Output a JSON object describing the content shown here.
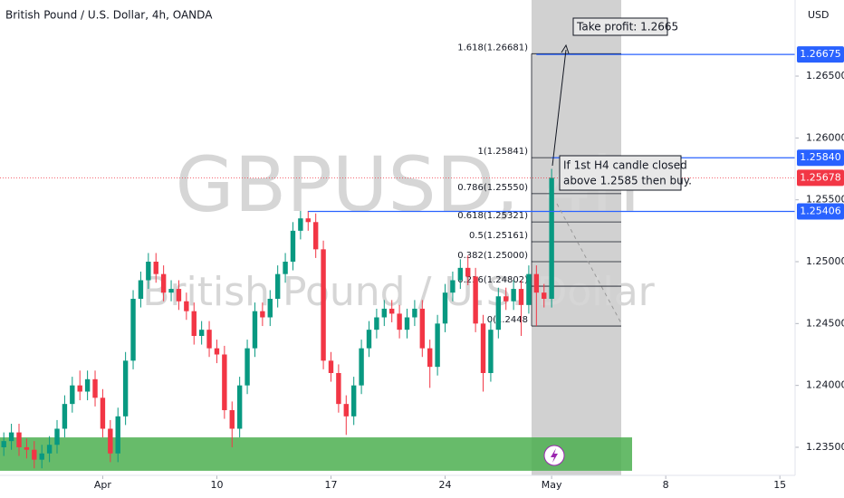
{
  "chart_data": {
    "type": "candlestick",
    "title": "British Pound / U.S. Dollar, 4h, OANDA",
    "watermark": "GBPUSD, 4h",
    "watermark_subtitle": "British Pound / U.S. Dollar",
    "currency": "USD",
    "up_color": "#089981",
    "down_color": "#f23645",
    "xlim": [
      -0.5,
      104
    ],
    "xticks": [
      {
        "value": 13,
        "label": "Apr"
      },
      {
        "value": 28,
        "label": "10"
      },
      {
        "value": 43,
        "label": "17"
      },
      {
        "value": 58,
        "label": "24"
      },
      {
        "value": 72,
        "label": "May"
      },
      {
        "value": 87,
        "label": "8"
      },
      {
        "value": 102,
        "label": "15"
      }
    ],
    "ylim": [
      1.23273,
      1.27115
    ],
    "yticks": [
      {
        "value": 1.235,
        "label": "1.23500"
      },
      {
        "value": 1.24,
        "label": "1.24000"
      },
      {
        "value": 1.245,
        "label": "1.24500"
      },
      {
        "value": 1.25,
        "label": "1.25000"
      },
      {
        "value": 1.255,
        "label": "1.25500"
      },
      {
        "value": 1.26,
        "label": "1.26000"
      },
      {
        "value": 1.265,
        "label": "1.26500"
      }
    ],
    "open": [
      1.235,
      1.2355,
      1.2362,
      1.235,
      1.2348,
      1.234,
      1.2345,
      1.2352,
      1.2365,
      1.2385,
      1.24,
      1.2395,
      1.2405,
      1.239,
      1.2365,
      1.2345,
      1.2375,
      1.242,
      1.247,
      1.2485,
      1.25,
      1.249,
      1.2475,
      1.2478,
      1.2468,
      1.246,
      1.244,
      1.2445,
      1.243,
      1.2425,
      1.238,
      1.2365,
      1.24,
      1.243,
      1.246,
      1.2455,
      1.247,
      1.249,
      1.25,
      1.2525,
      1.2535,
      1.2532,
      1.251,
      1.242,
      1.241,
      1.2385,
      1.2375,
      1.24,
      1.243,
      1.2445,
      1.2455,
      1.2462,
      1.2458,
      1.2445,
      1.2455,
      1.2462,
      1.243,
      1.2415,
      1.245,
      1.2475,
      1.2485,
      1.2495,
      1.2488,
      1.245,
      1.241,
      1.2445,
      1.2472,
      1.2468,
      1.2478,
      1.2465,
      1.249,
      1.2475,
      1.247
    ],
    "high": [
      1.2362,
      1.2369,
      1.2369,
      1.2357,
      1.2355,
      1.2352,
      1.2359,
      1.2372,
      1.2392,
      1.2407,
      1.2412,
      1.2412,
      1.2412,
      1.2397,
      1.2372,
      1.2382,
      1.2427,
      1.2477,
      1.2492,
      1.2507,
      1.2507,
      1.2497,
      1.2485,
      1.2485,
      1.2475,
      1.2467,
      1.2452,
      1.2452,
      1.2437,
      1.2432,
      1.2387,
      1.2407,
      1.2437,
      1.2467,
      1.2467,
      1.2477,
      1.2497,
      1.2507,
      1.2532,
      1.2541,
      1.2541,
      1.2539,
      1.2517,
      1.2427,
      1.2417,
      1.2392,
      1.2407,
      1.2437,
      1.2452,
      1.2462,
      1.2469,
      1.2469,
      1.2465,
      1.2462,
      1.2469,
      1.2469,
      1.2437,
      1.2457,
      1.2482,
      1.2492,
      1.2502,
      1.2505,
      1.2495,
      1.2457,
      1.2452,
      1.2479,
      1.2479,
      1.2485,
      1.2485,
      1.2497,
      1.2497,
      1.2482,
      1.2575
    ],
    "low": [
      1.2343,
      1.2348,
      1.2343,
      1.2341,
      1.2333,
      1.2333,
      1.2338,
      1.2345,
      1.2358,
      1.2378,
      1.2388,
      1.2388,
      1.2383,
      1.2358,
      1.2338,
      1.2338,
      1.2368,
      1.2413,
      1.2463,
      1.2478,
      1.2483,
      1.2468,
      1.2468,
      1.2461,
      1.2453,
      1.2433,
      1.2433,
      1.2423,
      1.2418,
      1.2373,
      1.235,
      1.2358,
      1.2393,
      1.2423,
      1.2448,
      1.2448,
      1.2463,
      1.2483,
      1.2493,
      1.2518,
      1.2525,
      1.2503,
      1.2413,
      1.2403,
      1.2378,
      1.236,
      1.2368,
      1.2393,
      1.2423,
      1.2438,
      1.2448,
      1.2451,
      1.2438,
      1.2438,
      1.2448,
      1.2423,
      1.2398,
      1.2408,
      1.2443,
      1.2468,
      1.2478,
      1.2481,
      1.2443,
      1.2395,
      1.2403,
      1.2438,
      1.2461,
      1.2461,
      1.244,
      1.2458,
      1.2448,
      1.2463,
      1.2463
    ],
    "close": [
      1.2355,
      1.2362,
      1.235,
      1.2348,
      1.234,
      1.2345,
      1.2352,
      1.2365,
      1.2385,
      1.24,
      1.2395,
      1.2405,
      1.239,
      1.2365,
      1.2345,
      1.2375,
      1.242,
      1.247,
      1.2485,
      1.25,
      1.249,
      1.2475,
      1.2478,
      1.2468,
      1.246,
      1.244,
      1.2445,
      1.243,
      1.2425,
      1.238,
      1.2365,
      1.24,
      1.243,
      1.246,
      1.2455,
      1.247,
      1.249,
      1.25,
      1.2525,
      1.2535,
      1.2532,
      1.251,
      1.242,
      1.241,
      1.2385,
      1.2375,
      1.24,
      1.243,
      1.2445,
      1.2455,
      1.2462,
      1.2458,
      1.2445,
      1.2455,
      1.2462,
      1.243,
      1.2415,
      1.245,
      1.2475,
      1.2485,
      1.2495,
      1.2488,
      1.245,
      1.241,
      1.2445,
      1.2472,
      1.2468,
      1.2478,
      1.2465,
      1.249,
      1.2475,
      1.247,
      1.25678
    ],
    "levels": [
      {
        "value": 1.26675,
        "label": "1.26675",
        "color": "#2962ff",
        "from": 70
      },
      {
        "value": 1.2584,
        "label": "1.25840",
        "color": "#2962ff",
        "from": 72
      },
      {
        "value": 1.25678,
        "label": "1.25678",
        "color": "#f23645",
        "from": -0.5
      },
      {
        "value": 1.25406,
        "label": "1.25406",
        "color": "#2962ff",
        "from": 40
      }
    ],
    "fibonacci": [
      {
        "value": 1.26681,
        "label": "1.618(1.26681)"
      },
      {
        "value": 1.25841,
        "label": "1(1.25841)"
      },
      {
        "value": 1.2555,
        "label": "0.786(1.25550)"
      },
      {
        "value": 1.25321,
        "label": "0.618(1.25321)"
      },
      {
        "value": 1.25161,
        "label": "0.5(1.25161)"
      },
      {
        "value": 1.25,
        "label": "0.382(1.25000)"
      },
      {
        "value": 1.24802,
        "label": "0.236(1.24802)"
      },
      {
        "value": 1.2448,
        "label": "0(1.2448"
      }
    ],
    "support_zone": [
      1.2331,
      1.2358
    ],
    "annotations": [
      "Take profit: 1.2665",
      "If 1st H4 candle closed",
      "above 1.2585 then buy."
    ]
  }
}
